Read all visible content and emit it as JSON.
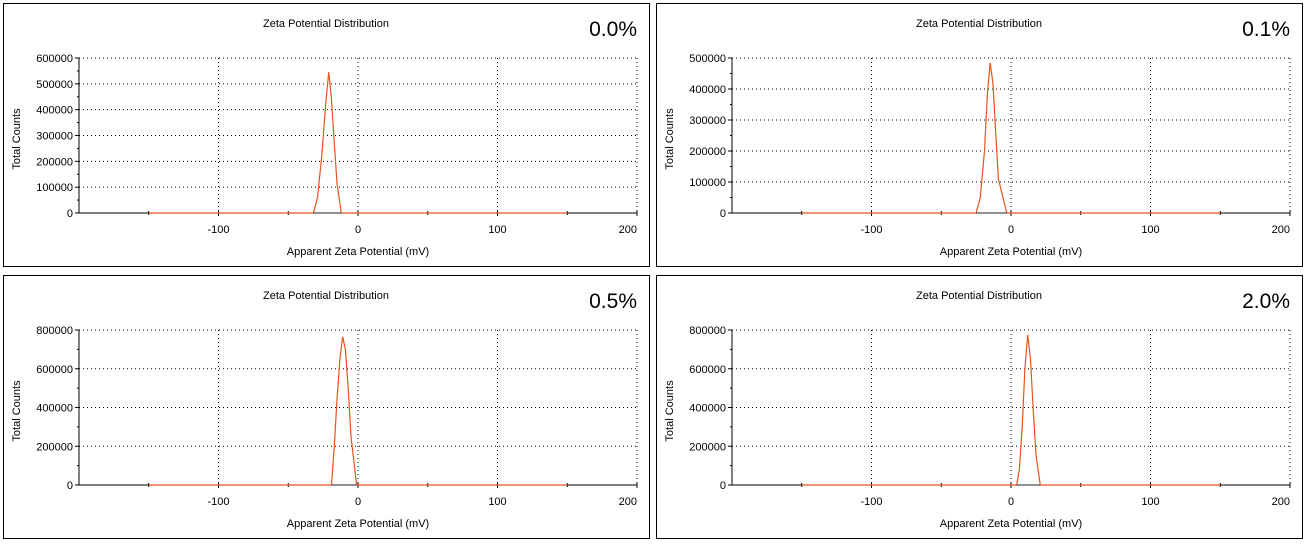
{
  "chart_data": [
    {
      "type": "line",
      "title": "Zeta Potential Distribution",
      "label": "0.0%",
      "xlabel": "Apparent Zeta Potential (mV)",
      "ylabel": "Total Counts",
      "xlim": [
        -200,
        200
      ],
      "ylim": [
        0,
        600000
      ],
      "xticks": [
        -100,
        0,
        100,
        200
      ],
      "yticks": [
        0,
        100000,
        200000,
        300000,
        400000,
        500000,
        600000
      ],
      "grid": true,
      "line_color": "#e8541c",
      "series": [
        {
          "x": [
            -150,
            -32,
            -29,
            -26,
            -23,
            -21,
            -19,
            -17,
            -15,
            -12,
            150
          ],
          "y": [
            0,
            0,
            60000,
            220000,
            430000,
            545000,
            440000,
            270000,
            110000,
            0,
            0
          ]
        }
      ]
    },
    {
      "type": "line",
      "title": "Zeta Potential Distribution",
      "label": "0.1%",
      "xlabel": "Apparent Zeta Potential (mV)",
      "ylabel": "Total Counts",
      "xlim": [
        -200,
        200
      ],
      "ylim": [
        0,
        500000
      ],
      "xticks": [
        -100,
        0,
        100,
        200
      ],
      "yticks": [
        0,
        100000,
        200000,
        300000,
        400000,
        500000
      ],
      "grid": true,
      "line_color": "#e8541c",
      "series": [
        {
          "x": [
            -150,
            -25,
            -22,
            -19,
            -17,
            -15,
            -13,
            -11,
            -9,
            -3,
            150
          ],
          "y": [
            0,
            0,
            50000,
            200000,
            380000,
            485000,
            420000,
            260000,
            110000,
            0,
            0
          ]
        }
      ]
    },
    {
      "type": "line",
      "title": "Zeta Potential Distribution",
      "label": "0.5%",
      "xlabel": "Apparent Zeta Potential (mV)",
      "ylabel": "Total Counts",
      "xlim": [
        -200,
        200
      ],
      "ylim": [
        0,
        800000
      ],
      "xticks": [
        -100,
        0,
        100,
        200
      ],
      "yticks": [
        0,
        200000,
        400000,
        600000,
        800000
      ],
      "grid": true,
      "line_color": "#e8541c",
      "series": [
        {
          "x": [
            -150,
            -19,
            -17,
            -15,
            -13,
            -11,
            -9,
            -7,
            -5,
            -1,
            150
          ],
          "y": [
            0,
            0,
            200000,
            450000,
            650000,
            765000,
            700000,
            500000,
            250000,
            0,
            0
          ]
        }
      ]
    },
    {
      "type": "line",
      "title": "Zeta Potential Distribution",
      "label": "2.0%",
      "xlabel": "Apparent Zeta Potential (mV)",
      "ylabel": "Total Counts",
      "xlim": [
        -200,
        200
      ],
      "ylim": [
        0,
        800000
      ],
      "xticks": [
        -100,
        0,
        100,
        200
      ],
      "yticks": [
        0,
        200000,
        400000,
        600000,
        800000
      ],
      "grid": true,
      "line_color": "#e8541c",
      "series": [
        {
          "x": [
            -150,
            4,
            6,
            8,
            10,
            12,
            14,
            16,
            18,
            21,
            150
          ],
          "y": [
            0,
            0,
            80000,
            300000,
            600000,
            775000,
            650000,
            380000,
            150000,
            0,
            0
          ]
        }
      ]
    }
  ]
}
